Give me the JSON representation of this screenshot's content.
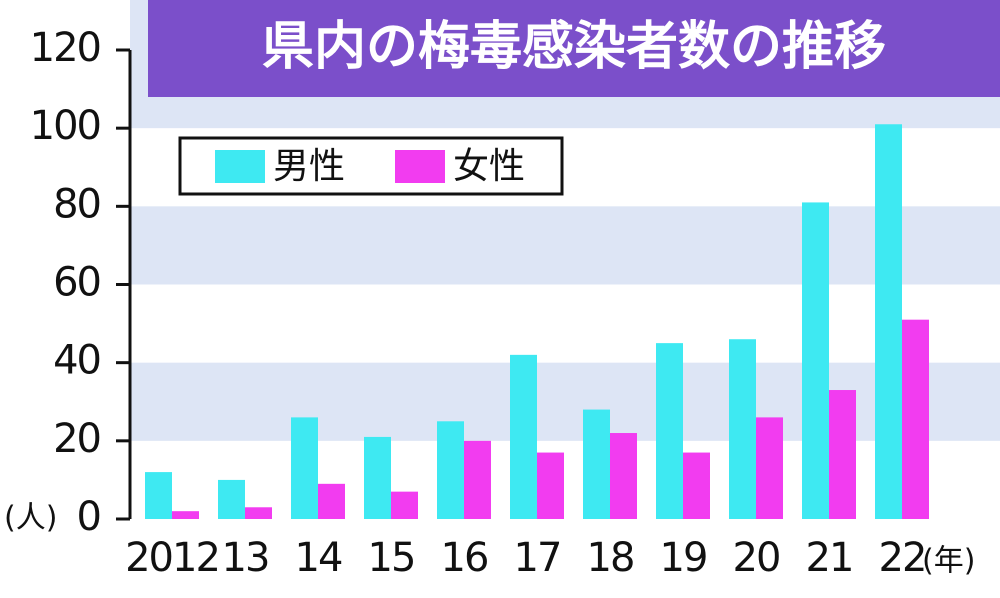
{
  "chart_data": {
    "type": "bar",
    "title": "県内の梅毒感染者数の推移",
    "y_unit": "(人)",
    "x_unit": "(年)",
    "categories": [
      "2012",
      "13",
      "14",
      "15",
      "16",
      "17",
      "18",
      "19",
      "20",
      "21",
      "22"
    ],
    "series": [
      {
        "name": "男性",
        "color": "#3ee9f2",
        "values": [
          12,
          10,
          26,
          21,
          25,
          42,
          28,
          45,
          46,
          81,
          101
        ]
      },
      {
        "name": "女性",
        "color": "#f23cf0",
        "values": [
          2,
          3,
          9,
          7,
          20,
          17,
          22,
          17,
          26,
          33,
          51
        ]
      }
    ],
    "ylim": [
      0,
      120
    ],
    "yticks": [
      0,
      20,
      40,
      60,
      80,
      100,
      120
    ],
    "band_color": "#dde5f5"
  }
}
